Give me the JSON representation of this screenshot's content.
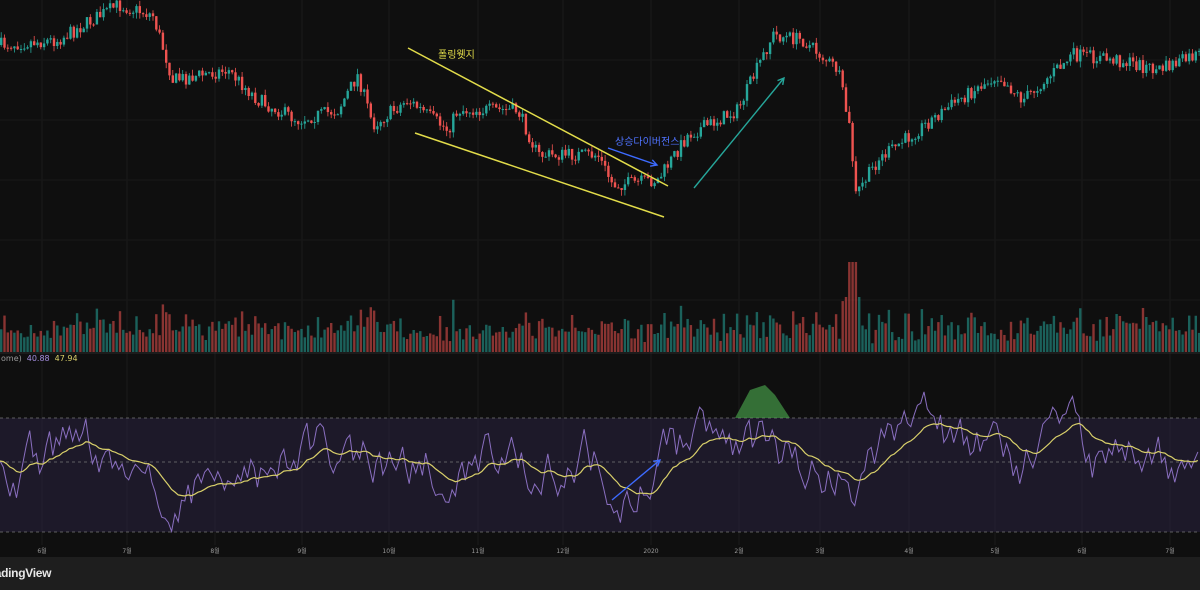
{
  "chart_data": {
    "type": "candlestick",
    "panes": [
      "price",
      "volume",
      "rsi"
    ],
    "x_tick_labels": [
      "6월",
      "7월",
      "8월",
      "9월",
      "10월",
      "11월",
      "12월",
      "2020",
      "2월",
      "3월",
      "4월",
      "5월",
      "6월",
      "7월"
    ],
    "annotations": {
      "falling_wedge": "폴링웻지",
      "bullish_divergence": "상승다이버전스"
    },
    "rsi": {
      "legend_prefix": "ome)",
      "rsi_value": "40.88",
      "ma_value": "47.94",
      "levels": [
        70,
        50,
        30
      ]
    },
    "colors": {
      "up": "#26a69a",
      "down": "#ef5350",
      "trendline": "#e2dc4a",
      "arrow": "#3d6bff",
      "rsi": "#8a6fc0",
      "rsi_ma": "#d8cf6a",
      "rsi_band": "#2a2340"
    }
  },
  "footer": {
    "logo": "TradingView"
  }
}
